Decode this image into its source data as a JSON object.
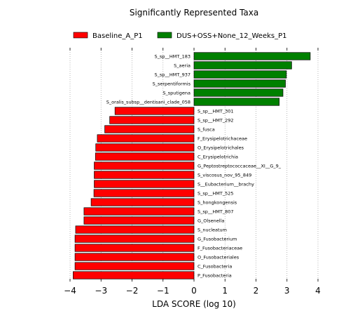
{
  "chart_data": {
    "type": "bar",
    "orientation": "horizontal",
    "title": "Significantly Represented Taxa",
    "xlabel": "LDA SCORE (log 10)",
    "ylabel": "",
    "xlim": [
      -4,
      4
    ],
    "xticks": [
      -4,
      -3,
      -2,
      -1,
      0,
      1,
      2,
      3,
      4
    ],
    "grid": "vertical-dotted",
    "legend_placement": "top",
    "series": [
      {
        "name": "Baseline_A_P1",
        "color": "#ff0000"
      },
      {
        "name": "DUS+OSS+None_12_Weeks_P1",
        "color": "#008000"
      }
    ],
    "bars": [
      {
        "label": "S_sp__HMT_183",
        "value": 3.75,
        "group": 1
      },
      {
        "label": "S_aeria",
        "value": 3.15,
        "group": 1
      },
      {
        "label": "S_sp__HMT_937",
        "value": 2.98,
        "group": 1
      },
      {
        "label": "S_serpentiformis",
        "value": 2.95,
        "group": 1
      },
      {
        "label": "S_sputigena",
        "value": 2.87,
        "group": 1
      },
      {
        "label": "S_oralis_subsp__dentisani_clade_058",
        "value": 2.75,
        "group": 1
      },
      {
        "label": "S_sp__HMT_301",
        "value": -2.55,
        "group": 0
      },
      {
        "label": "S_sp__HMT_292",
        "value": -2.72,
        "group": 0
      },
      {
        "label": "S_fusca",
        "value": -2.88,
        "group": 0
      },
      {
        "label": "F_Erysipelotrichaceae",
        "value": -3.12,
        "group": 0
      },
      {
        "label": "O_Erysipelotrichales",
        "value": -3.17,
        "group": 0
      },
      {
        "label": "C_Erysipelotrichia",
        "value": -3.18,
        "group": 0
      },
      {
        "label": "G_Peptostreptococcaceae__XI__G_9_",
        "value": -3.22,
        "group": 0
      },
      {
        "label": "S_viscosus_nov_95_849",
        "value": -3.22,
        "group": 0
      },
      {
        "label": "S__Eubacterium__brachy",
        "value": -3.22,
        "group": 0
      },
      {
        "label": "S_sp__HMT_525",
        "value": -3.23,
        "group": 0
      },
      {
        "label": "S_hongkongensis",
        "value": -3.32,
        "group": 0
      },
      {
        "label": "S_sp__HMT_807",
        "value": -3.55,
        "group": 0
      },
      {
        "label": "G_Olsenella",
        "value": -3.55,
        "group": 0
      },
      {
        "label": "S_nucleatum",
        "value": -3.82,
        "group": 0
      },
      {
        "label": "G_Fusobacterium",
        "value": -3.84,
        "group": 0
      },
      {
        "label": "F_Fusobacteriaceae",
        "value": -3.84,
        "group": 0
      },
      {
        "label": "O_Fusobacteriales",
        "value": -3.84,
        "group": 0
      },
      {
        "label": "C_Fusobacteria",
        "value": -3.84,
        "group": 0
      },
      {
        "label": "P_Fusobacteria",
        "value": -3.9,
        "group": 0
      }
    ]
  }
}
